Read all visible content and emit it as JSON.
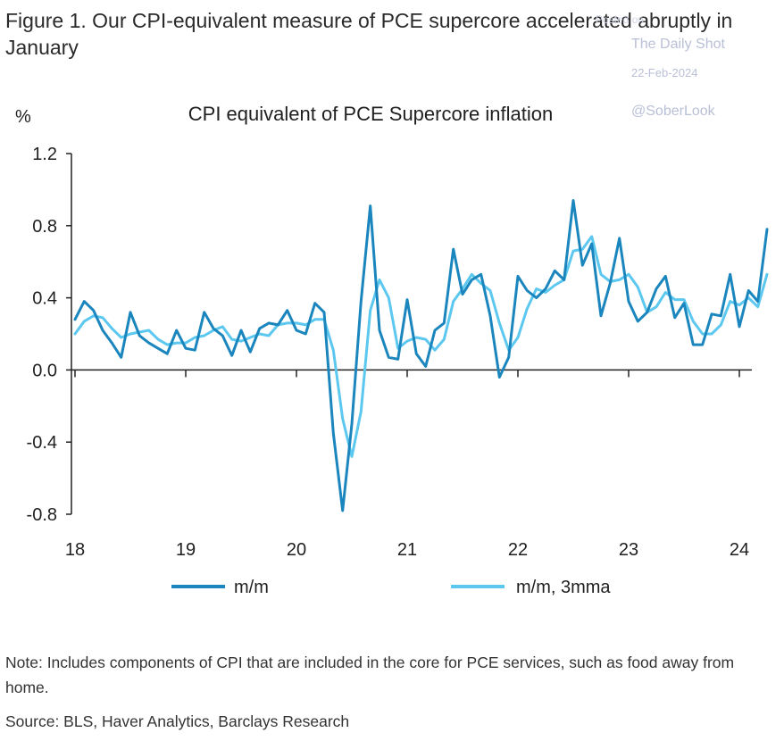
{
  "header": {
    "title": "Figure 1. Our CPI-equivalent measure of PCE supercore accelerated abruptly in January"
  },
  "watermark": {
    "posted": "Posted on",
    "site": "The Daily Shot",
    "date": "22-Feb-2024",
    "handle": "@SoberLook"
  },
  "footer": {
    "note": "Note: Includes components of CPI that are included in the core for PCE services, such as food away from home.",
    "source": "Source: BLS, Haver Analytics, Barclays Research"
  },
  "chart_data": {
    "type": "line",
    "title": "CPI equivalent of PCE Supercore inflation",
    "ylabel": "%",
    "xlabel": "",
    "ylim": [
      -0.8,
      1.2
    ],
    "yticks": [
      "1.2",
      "0.8",
      "0.4",
      "0.0",
      "-0.4",
      "-0.8"
    ],
    "xticks": [
      "18",
      "19",
      "20",
      "21",
      "22",
      "23",
      "24"
    ],
    "grid": false,
    "legend_position": "bottom",
    "x_start": "2018-01",
    "x_end": "2024-01",
    "series": [
      {
        "name": "m/m",
        "color": "#1a86bd",
        "values": [
          0.28,
          0.38,
          0.33,
          0.22,
          0.15,
          0.07,
          0.32,
          0.19,
          0.15,
          0.12,
          0.09,
          0.22,
          0.12,
          0.11,
          0.32,
          0.23,
          0.19,
          0.08,
          0.22,
          0.1,
          0.23,
          0.26,
          0.25,
          0.33,
          0.22,
          0.2,
          0.37,
          0.32,
          -0.35,
          -0.78,
          -0.3,
          0.38,
          0.91,
          0.22,
          0.07,
          0.06,
          0.39,
          0.09,
          0.02,
          0.22,
          0.26,
          0.67,
          0.42,
          0.5,
          0.53,
          0.3,
          -0.04,
          0.07,
          0.52,
          0.44,
          0.4,
          0.45,
          0.55,
          0.5,
          0.94,
          0.58,
          0.7,
          0.3,
          0.48,
          0.73,
          0.38,
          0.27,
          0.32,
          0.45,
          0.52,
          0.29,
          0.37,
          0.14,
          0.14,
          0.31,
          0.3,
          0.53,
          0.24,
          0.44,
          0.38,
          0.78
        ],
        "linewidth": 3
      },
      {
        "name": "m/m, 3mma",
        "color": "#5cc8f0",
        "values": [
          0.2,
          0.27,
          0.3,
          0.29,
          0.23,
          0.18,
          0.2,
          0.21,
          0.22,
          0.17,
          0.14,
          0.15,
          0.15,
          0.18,
          0.19,
          0.22,
          0.24,
          0.17,
          0.16,
          0.18,
          0.2,
          0.19,
          0.25,
          0.26,
          0.26,
          0.25,
          0.28,
          0.28,
          0.11,
          -0.27,
          -0.48,
          -0.23,
          0.33,
          0.5,
          0.4,
          0.12,
          0.16,
          0.18,
          0.17,
          0.11,
          0.17,
          0.38,
          0.45,
          0.53,
          0.48,
          0.44,
          0.26,
          0.11,
          0.18,
          0.34,
          0.45,
          0.43,
          0.47,
          0.5,
          0.66,
          0.67,
          0.74,
          0.53,
          0.49,
          0.5,
          0.53,
          0.46,
          0.32,
          0.35,
          0.43,
          0.39,
          0.39,
          0.27,
          0.2,
          0.2,
          0.25,
          0.38,
          0.36,
          0.4,
          0.35,
          0.53
        ],
        "linewidth": 3
      }
    ]
  }
}
